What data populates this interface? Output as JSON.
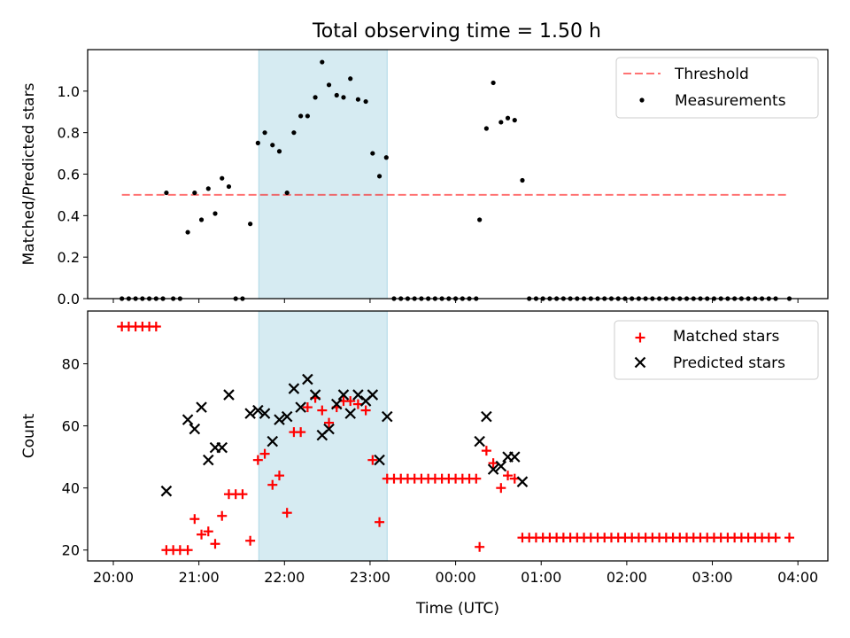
{
  "figure": {
    "title": "Total observing time = 1.50 h"
  },
  "colors": {
    "highlight": "#add8e6",
    "threshold": "#ff0000",
    "measurement": "#000000",
    "matched": "#ff0000",
    "predicted": "#000000"
  },
  "chart_data": [
    {
      "type": "scatter",
      "ylabel": "Matched/Predicted stars",
      "xlabel": "",
      "ylim": [
        0,
        1.2
      ],
      "yticks": [
        0.0,
        0.2,
        0.4,
        0.6,
        0.8,
        1.0
      ],
      "ytick_labels": [
        "0.0",
        "0.2",
        "0.4",
        "0.6",
        "0.8",
        "1.0"
      ],
      "x_units": "hours from 20:00 UTC",
      "xlim": [
        -0.3,
        8.35
      ],
      "shaded_interval": [
        1.7,
        3.2
      ],
      "legend": {
        "position": "upper right",
        "entries": [
          "Threshold",
          "Measurements"
        ]
      },
      "threshold": {
        "name": "Threshold",
        "value": 0.5,
        "x_range": [
          0.1,
          7.9
        ],
        "style": "dashed"
      },
      "series": [
        {
          "name": "Measurements",
          "points": [
            [
              0.1,
              0
            ],
            [
              0.18,
              0
            ],
            [
              0.26,
              0
            ],
            [
              0.34,
              0
            ],
            [
              0.42,
              0
            ],
            [
              0.5,
              0
            ],
            [
              0.58,
              0
            ],
            [
              0.62,
              0.51
            ],
            [
              0.7,
              0
            ],
            [
              0.78,
              0
            ],
            [
              0.87,
              0.32
            ],
            [
              0.95,
              0.51
            ],
            [
              1.03,
              0.38
            ],
            [
              1.11,
              0.53
            ],
            [
              1.19,
              0.41
            ],
            [
              1.27,
              0.58
            ],
            [
              1.35,
              0.54
            ],
            [
              1.43,
              0
            ],
            [
              1.51,
              0
            ],
            [
              1.6,
              0.36
            ],
            [
              1.69,
              0.75
            ],
            [
              1.77,
              0.8
            ],
            [
              1.86,
              0.74
            ],
            [
              1.94,
              0.71
            ],
            [
              2.03,
              0.51
            ],
            [
              2.11,
              0.8
            ],
            [
              2.19,
              0.88
            ],
            [
              2.27,
              0.88
            ],
            [
              2.36,
              0.97
            ],
            [
              2.44,
              1.14
            ],
            [
              2.52,
              1.03
            ],
            [
              2.61,
              0.98
            ],
            [
              2.69,
              0.97
            ],
            [
              2.77,
              1.06
            ],
            [
              2.86,
              0.96
            ],
            [
              2.95,
              0.95
            ],
            [
              3.03,
              0.7
            ],
            [
              3.11,
              0.59
            ],
            [
              3.19,
              0.68
            ],
            [
              3.28,
              0
            ],
            [
              3.36,
              0
            ],
            [
              3.44,
              0
            ],
            [
              3.52,
              0
            ],
            [
              3.6,
              0
            ],
            [
              3.68,
              0
            ],
            [
              3.76,
              0
            ],
            [
              3.84,
              0
            ],
            [
              3.92,
              0
            ],
            [
              4.0,
              0
            ],
            [
              4.08,
              0
            ],
            [
              4.16,
              0
            ],
            [
              4.24,
              0
            ],
            [
              4.28,
              0.38
            ],
            [
              4.36,
              0.82
            ],
            [
              4.44,
              1.04
            ],
            [
              4.53,
              0.85
            ],
            [
              4.61,
              0.87
            ],
            [
              4.69,
              0.86
            ],
            [
              4.78,
              0.57
            ],
            [
              4.86,
              0
            ],
            [
              4.94,
              0
            ],
            [
              5.02,
              0
            ],
            [
              5.1,
              0
            ],
            [
              5.18,
              0
            ],
            [
              5.26,
              0
            ],
            [
              5.34,
              0
            ],
            [
              5.42,
              0
            ],
            [
              5.5,
              0
            ],
            [
              5.58,
              0
            ],
            [
              5.66,
              0
            ],
            [
              5.74,
              0
            ],
            [
              5.82,
              0
            ],
            [
              5.9,
              0
            ],
            [
              5.98,
              0
            ],
            [
              6.06,
              0
            ],
            [
              6.14,
              0
            ],
            [
              6.22,
              0
            ],
            [
              6.3,
              0
            ],
            [
              6.38,
              0
            ],
            [
              6.46,
              0
            ],
            [
              6.54,
              0
            ],
            [
              6.62,
              0
            ],
            [
              6.7,
              0
            ],
            [
              6.78,
              0
            ],
            [
              6.86,
              0
            ],
            [
              6.94,
              0
            ],
            [
              7.02,
              0
            ],
            [
              7.1,
              0
            ],
            [
              7.18,
              0
            ],
            [
              7.26,
              0
            ],
            [
              7.34,
              0
            ],
            [
              7.42,
              0
            ],
            [
              7.5,
              0
            ],
            [
              7.58,
              0
            ],
            [
              7.66,
              0
            ],
            [
              7.74,
              0
            ],
            [
              7.9,
              0
            ]
          ]
        }
      ]
    },
    {
      "type": "scatter",
      "ylabel": "Count",
      "xlabel": "Time (UTC)",
      "ylim": [
        16.5,
        97
      ],
      "yticks": [
        20,
        40,
        60,
        80
      ],
      "ytick_labels": [
        "20",
        "40",
        "60",
        "80"
      ],
      "x_units": "hours from 20:00 UTC",
      "xlim": [
        -0.3,
        8.35
      ],
      "xticks": [
        0,
        1,
        2,
        3,
        4,
        5,
        6,
        7,
        8
      ],
      "xtick_labels": [
        "20:00",
        "21:00",
        "22:00",
        "23:00",
        "00:00",
        "01:00",
        "02:00",
        "03:00",
        "04:00"
      ],
      "shaded_interval": [
        1.7,
        3.2
      ],
      "legend": {
        "position": "upper right",
        "entries": [
          "Matched stars",
          "Predicted stars"
        ]
      },
      "series": [
        {
          "name": "Matched stars",
          "marker": "plus",
          "points": [
            [
              0.1,
              92
            ],
            [
              0.18,
              92
            ],
            [
              0.26,
              92
            ],
            [
              0.34,
              92
            ],
            [
              0.42,
              92
            ],
            [
              0.5,
              92
            ],
            [
              0.62,
              20
            ],
            [
              0.7,
              20
            ],
            [
              0.78,
              20
            ],
            [
              0.87,
              20
            ],
            [
              0.95,
              30
            ],
            [
              1.03,
              25
            ],
            [
              1.11,
              26
            ],
            [
              1.19,
              22
            ],
            [
              1.27,
              31
            ],
            [
              1.35,
              38
            ],
            [
              1.43,
              38
            ],
            [
              1.51,
              38
            ],
            [
              1.6,
              23
            ],
            [
              1.69,
              49
            ],
            [
              1.77,
              51
            ],
            [
              1.86,
              41
            ],
            [
              1.94,
              44
            ],
            [
              2.03,
              32
            ],
            [
              2.11,
              58
            ],
            [
              2.19,
              58
            ],
            [
              2.27,
              66
            ],
            [
              2.36,
              69
            ],
            [
              2.44,
              65
            ],
            [
              2.52,
              61
            ],
            [
              2.61,
              66
            ],
            [
              2.69,
              68
            ],
            [
              2.77,
              68
            ],
            [
              2.86,
              67
            ],
            [
              2.95,
              65
            ],
            [
              3.03,
              49
            ],
            [
              3.11,
              29
            ],
            [
              3.2,
              43
            ],
            [
              3.28,
              43
            ],
            [
              3.36,
              43
            ],
            [
              3.44,
              43
            ],
            [
              3.52,
              43
            ],
            [
              3.6,
              43
            ],
            [
              3.68,
              43
            ],
            [
              3.76,
              43
            ],
            [
              3.84,
              43
            ],
            [
              3.92,
              43
            ],
            [
              4.0,
              43
            ],
            [
              4.08,
              43
            ],
            [
              4.16,
              43
            ],
            [
              4.24,
              43
            ],
            [
              4.28,
              21
            ],
            [
              4.36,
              52
            ],
            [
              4.44,
              48
            ],
            [
              4.53,
              40
            ],
            [
              4.61,
              44
            ],
            [
              4.69,
              43
            ],
            [
              4.78,
              24
            ],
            [
              4.86,
              24
            ],
            [
              4.94,
              24
            ],
            [
              5.02,
              24
            ],
            [
              5.1,
              24
            ],
            [
              5.18,
              24
            ],
            [
              5.26,
              24
            ],
            [
              5.34,
              24
            ],
            [
              5.42,
              24
            ],
            [
              5.5,
              24
            ],
            [
              5.58,
              24
            ],
            [
              5.66,
              24
            ],
            [
              5.74,
              24
            ],
            [
              5.82,
              24
            ],
            [
              5.9,
              24
            ],
            [
              5.98,
              24
            ],
            [
              6.06,
              24
            ],
            [
              6.14,
              24
            ],
            [
              6.22,
              24
            ],
            [
              6.3,
              24
            ],
            [
              6.38,
              24
            ],
            [
              6.46,
              24
            ],
            [
              6.54,
              24
            ],
            [
              6.62,
              24
            ],
            [
              6.7,
              24
            ],
            [
              6.78,
              24
            ],
            [
              6.86,
              24
            ],
            [
              6.94,
              24
            ],
            [
              7.02,
              24
            ],
            [
              7.1,
              24
            ],
            [
              7.18,
              24
            ],
            [
              7.26,
              24
            ],
            [
              7.34,
              24
            ],
            [
              7.42,
              24
            ],
            [
              7.5,
              24
            ],
            [
              7.58,
              24
            ],
            [
              7.66,
              24
            ],
            [
              7.74,
              24
            ],
            [
              7.9,
              24
            ]
          ]
        },
        {
          "name": "Predicted stars",
          "marker": "x",
          "points": [
            [
              0.62,
              39
            ],
            [
              0.87,
              62
            ],
            [
              0.95,
              59
            ],
            [
              1.03,
              66
            ],
            [
              1.11,
              49
            ],
            [
              1.19,
              53
            ],
            [
              1.27,
              53
            ],
            [
              1.35,
              70
            ],
            [
              1.6,
              64
            ],
            [
              1.69,
              65
            ],
            [
              1.77,
              64
            ],
            [
              1.86,
              55
            ],
            [
              1.94,
              62
            ],
            [
              2.03,
              63
            ],
            [
              2.11,
              72
            ],
            [
              2.19,
              66
            ],
            [
              2.27,
              75
            ],
            [
              2.36,
              70
            ],
            [
              2.44,
              57
            ],
            [
              2.52,
              59
            ],
            [
              2.61,
              67
            ],
            [
              2.69,
              70
            ],
            [
              2.77,
              64
            ],
            [
              2.86,
              70
            ],
            [
              2.95,
              68
            ],
            [
              3.03,
              70
            ],
            [
              3.11,
              49
            ],
            [
              3.2,
              63
            ],
            [
              4.28,
              55
            ],
            [
              4.36,
              63
            ],
            [
              4.44,
              46
            ],
            [
              4.53,
              47
            ],
            [
              4.61,
              50
            ],
            [
              4.69,
              50
            ],
            [
              4.78,
              42
            ]
          ]
        }
      ]
    }
  ]
}
